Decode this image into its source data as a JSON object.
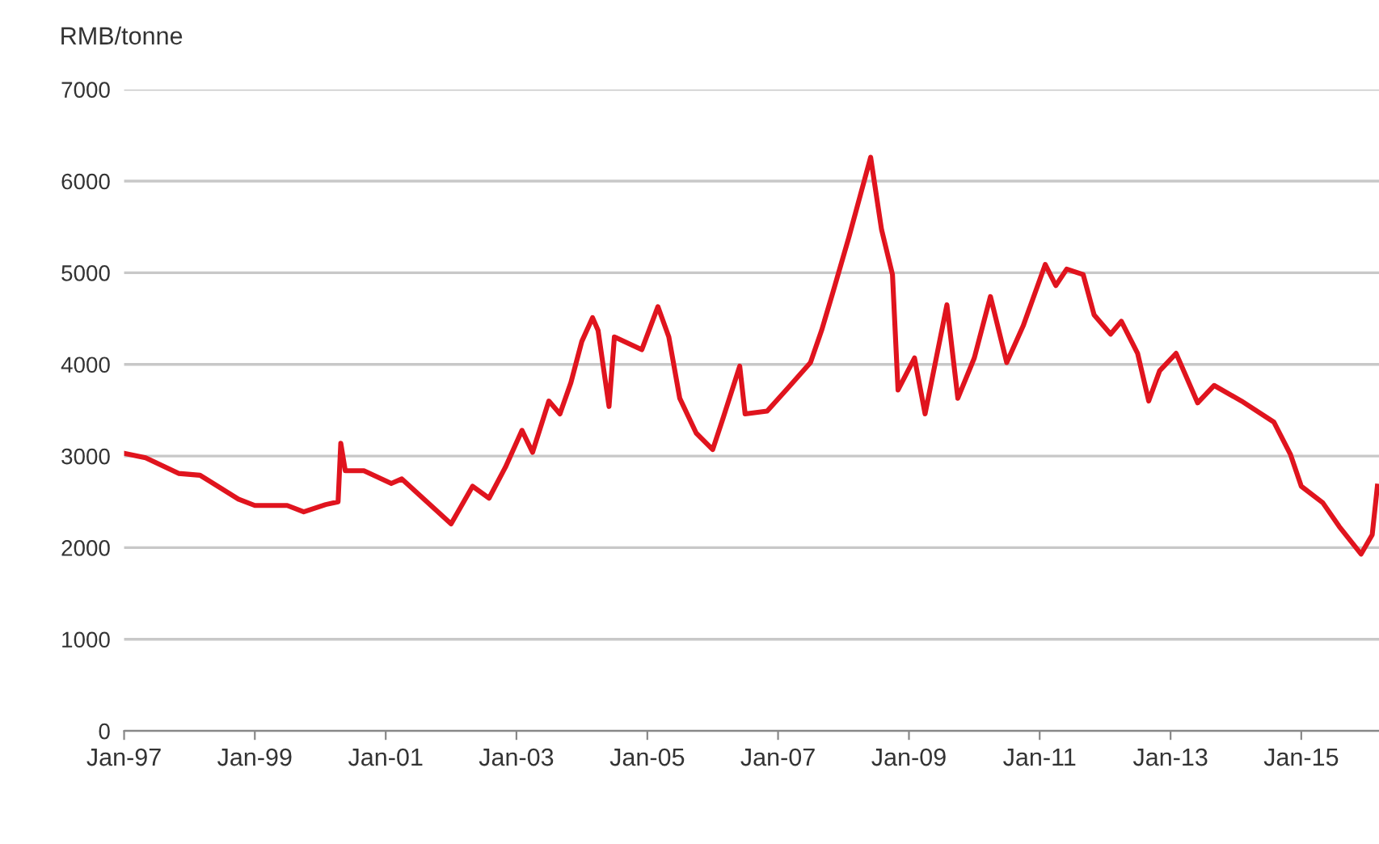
{
  "chart_data": {
    "type": "line",
    "ylabel": "RMB/tonne",
    "x": [
      "1997-01",
      "1997-05",
      "1997-11",
      "1998-03",
      "1998-10",
      "1999-01",
      "1999-07",
      "1999-10",
      "2000-02",
      "2000-04-10",
      "2000-04-25",
      "2000-05-20",
      "2000-09",
      "2001-02",
      "2001-04",
      "2002-01",
      "2002-05",
      "2002-08",
      "2002-11",
      "2003-02",
      "2003-04",
      "2003-07",
      "2003-09",
      "2003-11",
      "2004-01",
      "2004-03",
      "2004-04",
      "2004-06",
      "2004-07",
      "2004-12",
      "2005-03",
      "2005-05",
      "2005-07",
      "2005-10",
      "2006-01",
      "2006-03",
      "2006-06",
      "2006-07",
      "2006-11",
      "2007-03",
      "2007-07",
      "2007-09",
      "2007-11",
      "2008-02",
      "2008-06",
      "2008-08",
      "2008-10",
      "2008-11",
      "2009-02",
      "2009-04",
      "2009-08",
      "2009-10",
      "2010-01",
      "2010-04",
      "2010-07",
      "2010-10",
      "2011-02",
      "2011-04",
      "2011-06",
      "2011-09",
      "2011-11",
      "2012-02",
      "2012-04",
      "2012-07",
      "2012-09",
      "2012-11",
      "2013-02",
      "2013-06",
      "2013-09",
      "2014-02",
      "2014-08",
      "2014-11",
      "2015-01",
      "2015-05",
      "2015-08",
      "2015-12",
      "2016-02",
      "2016-03"
    ],
    "series": [
      {
        "color": "#e0141e",
        "values": [
          3030,
          2980,
          2810,
          2790,
          2530,
          2460,
          2460,
          2390,
          2470,
          2500,
          3140,
          2840,
          2840,
          2700,
          2750,
          2260,
          2670,
          2540,
          2880,
          3280,
          3040,
          3600,
          3460,
          3800,
          4250,
          4510,
          4370,
          3540,
          4300,
          4160,
          4630,
          4300,
          3630,
          3250,
          3070,
          3420,
          3980,
          3460,
          3490,
          3750,
          4020,
          4370,
          4770,
          5390,
          6260,
          5470,
          4980,
          3720,
          4070,
          3460,
          4650,
          3630,
          4070,
          4740,
          4020,
          4420,
          5090,
          4860,
          5040,
          4980,
          4540,
          4330,
          4470,
          4120,
          3600,
          3930,
          4120,
          3580,
          3770,
          3600,
          3370,
          3020,
          2670,
          2490,
          2230,
          1930,
          2140,
          2670
        ]
      }
    ],
    "xlim": [
      "1997-01-01",
      "2016-03-10"
    ],
    "xticks": [
      {
        "value": "1997-01-01",
        "label": "Jan-97"
      },
      {
        "value": "1999-01-01",
        "label": "Jan-99"
      },
      {
        "value": "2001-01-01",
        "label": "Jan-01"
      },
      {
        "value": "2003-01-01",
        "label": "Jan-03"
      },
      {
        "value": "2005-01-01",
        "label": "Jan-05"
      },
      {
        "value": "2007-01-01",
        "label": "Jan-07"
      },
      {
        "value": "2009-01-01",
        "label": "Jan-09"
      },
      {
        "value": "2011-01-01",
        "label": "Jan-11"
      },
      {
        "value": "2013-01-01",
        "label": "Jan-13"
      },
      {
        "value": "2015-01-01",
        "label": "Jan-15"
      }
    ],
    "ylim": [
      0,
      7000
    ],
    "yticks": [
      0,
      1000,
      2000,
      3000,
      4000,
      5000,
      6000,
      7000
    ],
    "grid": "y",
    "marker": "none",
    "line_style": "solid"
  }
}
